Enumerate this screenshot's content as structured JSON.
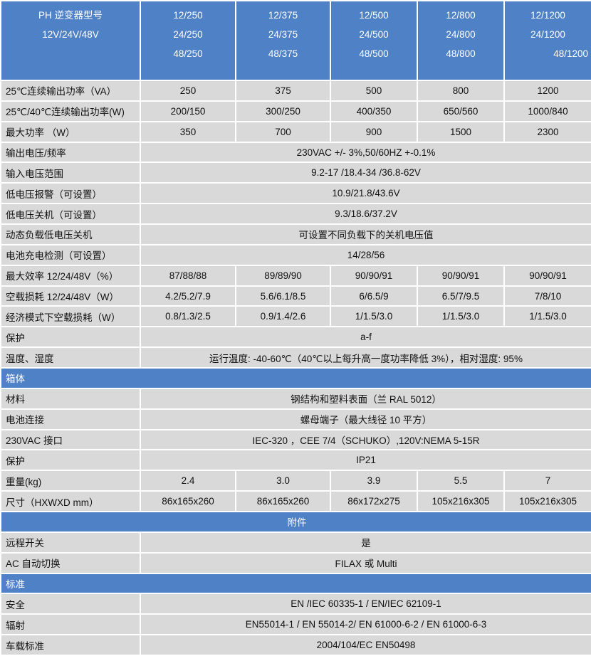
{
  "header": {
    "label": [
      "PH 逆变器型号",
      "12V/24V/48V"
    ],
    "models": [
      [
        "12/250",
        "24/250",
        "48/250"
      ],
      [
        "12/375",
        "24/375",
        "48/375"
      ],
      [
        "12/500",
        "24/500",
        "48/500"
      ],
      [
        "12/800",
        "24/800",
        "48/800"
      ],
      [
        "12/1200",
        "24/1200",
        "48/1200"
      ]
    ]
  },
  "rows": [
    {
      "label": "25℃连续输出功率（VA）",
      "values": [
        "250",
        "375",
        "500",
        "800",
        "1200"
      ]
    },
    {
      "label": "25℃/40℃连续输出功率(W)",
      "values": [
        "200/150",
        "300/250",
        "400/350",
        "650/560",
        "1000/840"
      ]
    },
    {
      "label": "最大功率 （W）",
      "values": [
        "350",
        "700",
        "900",
        "1500",
        "2300"
      ]
    },
    {
      "label": "输出电压/频率",
      "span": "230VAC +/- 3%,50/60HZ +-0.1%"
    },
    {
      "label": "输入电压范围",
      "span": "9.2-17 /18.4-34 /36.8-62V"
    },
    {
      "label": "低电压报警（可设置）",
      "span": "10.9/21.8/43.6V"
    },
    {
      "label": "低电压关机（可设置）",
      "span": "9.3/18.6/37.2V"
    },
    {
      "label": "动态负载低电压关机",
      "span": "可设置不同负载下的关机电压值"
    },
    {
      "label": "电池充电检测（可设置）",
      "span": "14/28/56"
    },
    {
      "label": "最大效率 12/24/48V（%）",
      "values": [
        "87/88/88",
        "89/89/90",
        "90/90/91",
        "90/90/91",
        "90/90/91"
      ]
    },
    {
      "label": "空载损耗 12/24/48V（W）",
      "values": [
        "4.2/5.2/7.9",
        "5.6/6.1/8.5",
        "6/6.5/9",
        "6.5/7/9.5",
        "7/8/10"
      ]
    },
    {
      "label": "经济模式下空载损耗（W）",
      "values": [
        "0.8/1.3/2.5",
        "0.9/1.4/2.6",
        "1/1.5/3.0",
        "1/1.5/3.0",
        "1/1.5/3.0"
      ]
    },
    {
      "label": "保护",
      "span": "a-f"
    },
    {
      "label": "温度、湿度",
      "span": "运行温度: -40-60℃（40℃以上每升高一度功率降低 3%），相对湿度: 95%"
    },
    {
      "section": "箱体"
    },
    {
      "label": "材料",
      "span": "钢结构和塑料表面（兰 RAL 5012）"
    },
    {
      "label": "电池连接",
      "span": "螺母端子（最大线径 10 平方）"
    },
    {
      "label": "230VAC 接口",
      "span": "IEC-320 ，CEE 7/4（SCHUKO）,120V:NEMA 5-15R"
    },
    {
      "label": "保护",
      "span": "IP21"
    },
    {
      "label": "重量(kg)",
      "values": [
        "2.4",
        "3.0",
        "3.9",
        "5.5",
        "7"
      ]
    },
    {
      "label": "尺寸（HXWXD mm）",
      "values": [
        "86x165x260",
        "86x165x260",
        "86x172x275",
        "105x216x305",
        "105x216x305"
      ]
    },
    {
      "section": "附件",
      "center": true
    },
    {
      "label": "远程开关",
      "span": "是"
    },
    {
      "label": "AC 自动切换",
      "span": "FILAX 或 Multi"
    },
    {
      "section": "标准"
    },
    {
      "label": "安全",
      "span": "EN /IEC 60335-1 / EN/IEC 62109-1"
    },
    {
      "label": "辐射",
      "span": "EN55014-1 / EN 55014-2/ EN 61000-6-2 / EN 61000-6-3"
    },
    {
      "label": "车载标准",
      "span": "2004/104/EC EN50498"
    }
  ],
  "colors": {
    "header_blue": "#4f81c7",
    "cell_gray": "#d9d9d9"
  }
}
